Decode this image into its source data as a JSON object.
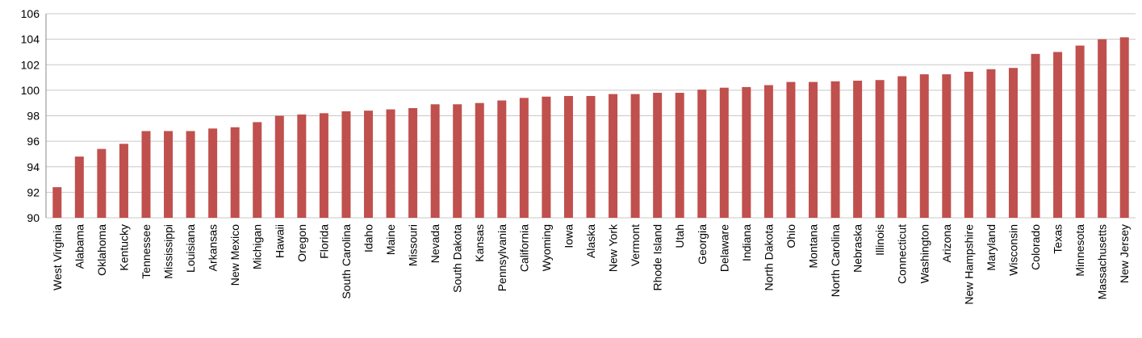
{
  "chart_data": {
    "type": "bar",
    "categories": [
      "West Virginia",
      "Alabama",
      "Oklahoma",
      "Kentucky",
      "Tennessee",
      "Mississippi",
      "Louisiana",
      "Arkansas",
      "New Mexico",
      "Michigan",
      "Hawaii",
      "Oregon",
      "Florida",
      "South Carolina",
      "Idaho",
      "Maine",
      "Missouri",
      "Nevada",
      "South Dakota",
      "Kansas",
      "Pennsylvania",
      "California",
      "Wyoming",
      "Iowa",
      "Alaska",
      "New York",
      "Vermont",
      "Rhode Island",
      "Utah",
      "Georgia",
      "Delaware",
      "Indiana",
      "North Dakota",
      "Ohio",
      "Montana",
      "North Carolina",
      "Nebraska",
      "Illinois",
      "Connecticut",
      "Washington",
      "Arizona",
      "New Hampshire",
      "Maryland",
      "Wisconsin",
      "Colorado",
      "Texas",
      "Minnesota",
      "Massachusetts",
      "New Jersey"
    ],
    "values": [
      92.4,
      94.8,
      95.4,
      95.8,
      96.8,
      96.8,
      96.8,
      97.0,
      97.1,
      97.5,
      98.0,
      98.1,
      98.2,
      98.35,
      98.4,
      98.5,
      98.6,
      98.9,
      98.9,
      99.0,
      99.2,
      99.4,
      99.5,
      99.55,
      99.55,
      99.7,
      99.7,
      99.8,
      99.8,
      100.05,
      100.2,
      100.25,
      100.4,
      100.65,
      100.65,
      100.7,
      100.75,
      100.8,
      101.1,
      101.25,
      101.25,
      101.45,
      101.65,
      101.75,
      102.85,
      103.0,
      103.5,
      104.0,
      104.15
    ],
    "color": "#c0504d",
    "ylim": [
      90,
      106
    ],
    "yticks": [
      90,
      92,
      94,
      96,
      98,
      100,
      102,
      104,
      106
    ],
    "grid": true
  }
}
